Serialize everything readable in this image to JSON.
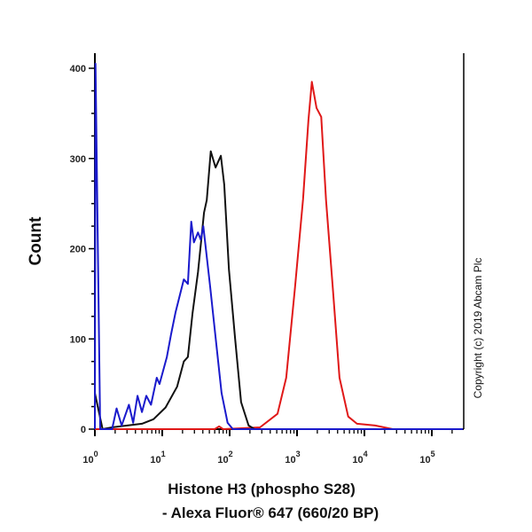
{
  "chart_data": {
    "type": "line",
    "xlabel_line1": "Histone H3 (phospho S28)",
    "xlabel_line2": "- Alexa Fluor® 647 (660/20 BP)",
    "ylabel": "Count",
    "x_scale": "log",
    "xlim": [
      1,
      290000
    ],
    "ylim": [
      0,
      420
    ],
    "x_ticks": [
      {
        "base": "10",
        "exp": "0",
        "value": 1
      },
      {
        "base": "10",
        "exp": "1",
        "value": 10
      },
      {
        "base": "10",
        "exp": "2",
        "value": 100
      },
      {
        "base": "10",
        "exp": "3",
        "value": 1000
      },
      {
        "base": "10",
        "exp": "4",
        "value": 10000
      },
      {
        "base": "10",
        "exp": "5",
        "value": 100000
      }
    ],
    "y_ticks": [
      "0",
      "100",
      "200",
      "300",
      "400"
    ],
    "grid": false,
    "annotation": "Copyright (c) 2019 Abcam Plc",
    "series": [
      {
        "color": "#1a1acc",
        "x": [
          1.0,
          1.02,
          1.2,
          1.8,
          2.1,
          2.5,
          3.2,
          3.7,
          4.3,
          5.0,
          5.8,
          6.8,
          8.3,
          9.1,
          11.7,
          13.5,
          15.8,
          20.9,
          24,
          26.9,
          29.5,
          33.9,
          37.2,
          40.7,
          51.3,
          61.7,
          75.9,
          93.3,
          112,
          290000
        ],
        "y": [
          0,
          405,
          0,
          0,
          23,
          4,
          27,
          7,
          37,
          19,
          37,
          27,
          57,
          50,
          80,
          105,
          130,
          166,
          161,
          230,
          207,
          218,
          210,
          225,
          158,
          102,
          40,
          7,
          0,
          0
        ]
      },
      {
        "color": "#111111",
        "x": [
          1.0,
          1.3,
          1.8,
          5.0,
          7.4,
          11.2,
          16.6,
          20.9,
          24,
          28.2,
          33.9,
          41.7,
          45.7,
          52.5,
          61.7,
          74.1,
          83.2,
          97.7,
          120,
          148,
          191,
          234,
          290000
        ],
        "y": [
          40,
          0,
          2,
          6,
          11,
          24,
          47,
          75,
          80,
          129,
          174,
          240,
          254,
          308,
          290,
          303,
          271,
          177,
          102,
          30,
          4,
          0,
          0
        ]
      },
      {
        "color": "#e01818",
        "x": [
          1,
          60,
          70,
          80,
          282,
          513,
          692,
          933,
          1230,
          1480,
          1660,
          1950,
          2290,
          2690,
          3390,
          4270,
          5750,
          7760,
          14450,
          26300,
          290000
        ],
        "y": [
          0,
          0,
          3,
          0,
          2,
          17,
          57,
          157,
          255,
          343,
          385,
          356,
          346,
          254,
          157,
          57,
          14,
          6,
          4,
          0,
          0
        ]
      }
    ]
  }
}
